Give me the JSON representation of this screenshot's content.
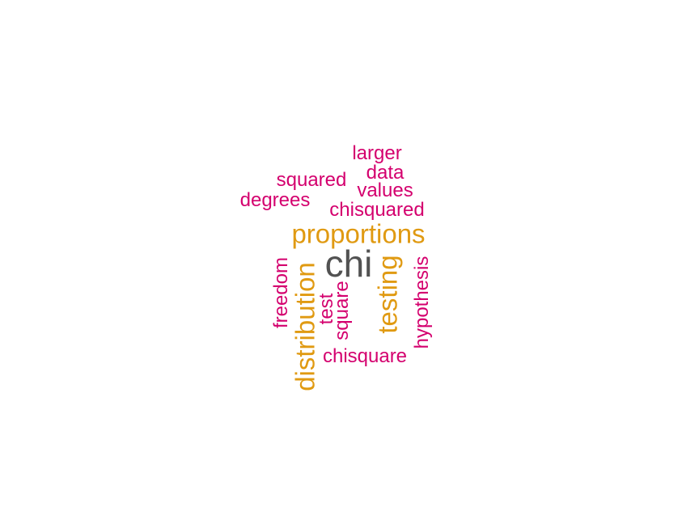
{
  "colors": {
    "magenta": "#d4006e",
    "orange": "#e09a12",
    "gray": "#525252"
  },
  "words": [
    {
      "text": "chi",
      "color": "gray",
      "tier": 1,
      "vertical": false
    },
    {
      "text": "proportions",
      "color": "orange",
      "tier": 2,
      "vertical": false
    },
    {
      "text": "distribution",
      "color": "orange",
      "tier": 2,
      "vertical": true
    },
    {
      "text": "testing",
      "color": "orange",
      "tier": 2,
      "vertical": true
    },
    {
      "text": "larger",
      "color": "magenta",
      "tier": 3,
      "vertical": false
    },
    {
      "text": "data",
      "color": "magenta",
      "tier": 3,
      "vertical": false
    },
    {
      "text": "squared",
      "color": "magenta",
      "tier": 3,
      "vertical": false
    },
    {
      "text": "values",
      "color": "magenta",
      "tier": 3,
      "vertical": false
    },
    {
      "text": "degrees",
      "color": "magenta",
      "tier": 3,
      "vertical": false
    },
    {
      "text": "chisquared",
      "color": "magenta",
      "tier": 3,
      "vertical": false
    },
    {
      "text": "freedom",
      "color": "magenta",
      "tier": 3,
      "vertical": true
    },
    {
      "text": "test",
      "color": "magenta",
      "tier": 3,
      "vertical": true
    },
    {
      "text": "square",
      "color": "magenta",
      "tier": 3,
      "vertical": true
    },
    {
      "text": "hypothesis",
      "color": "magenta",
      "tier": 3,
      "vertical": true
    },
    {
      "text": "chisquare",
      "color": "magenta",
      "tier": 3,
      "vertical": false
    }
  ]
}
